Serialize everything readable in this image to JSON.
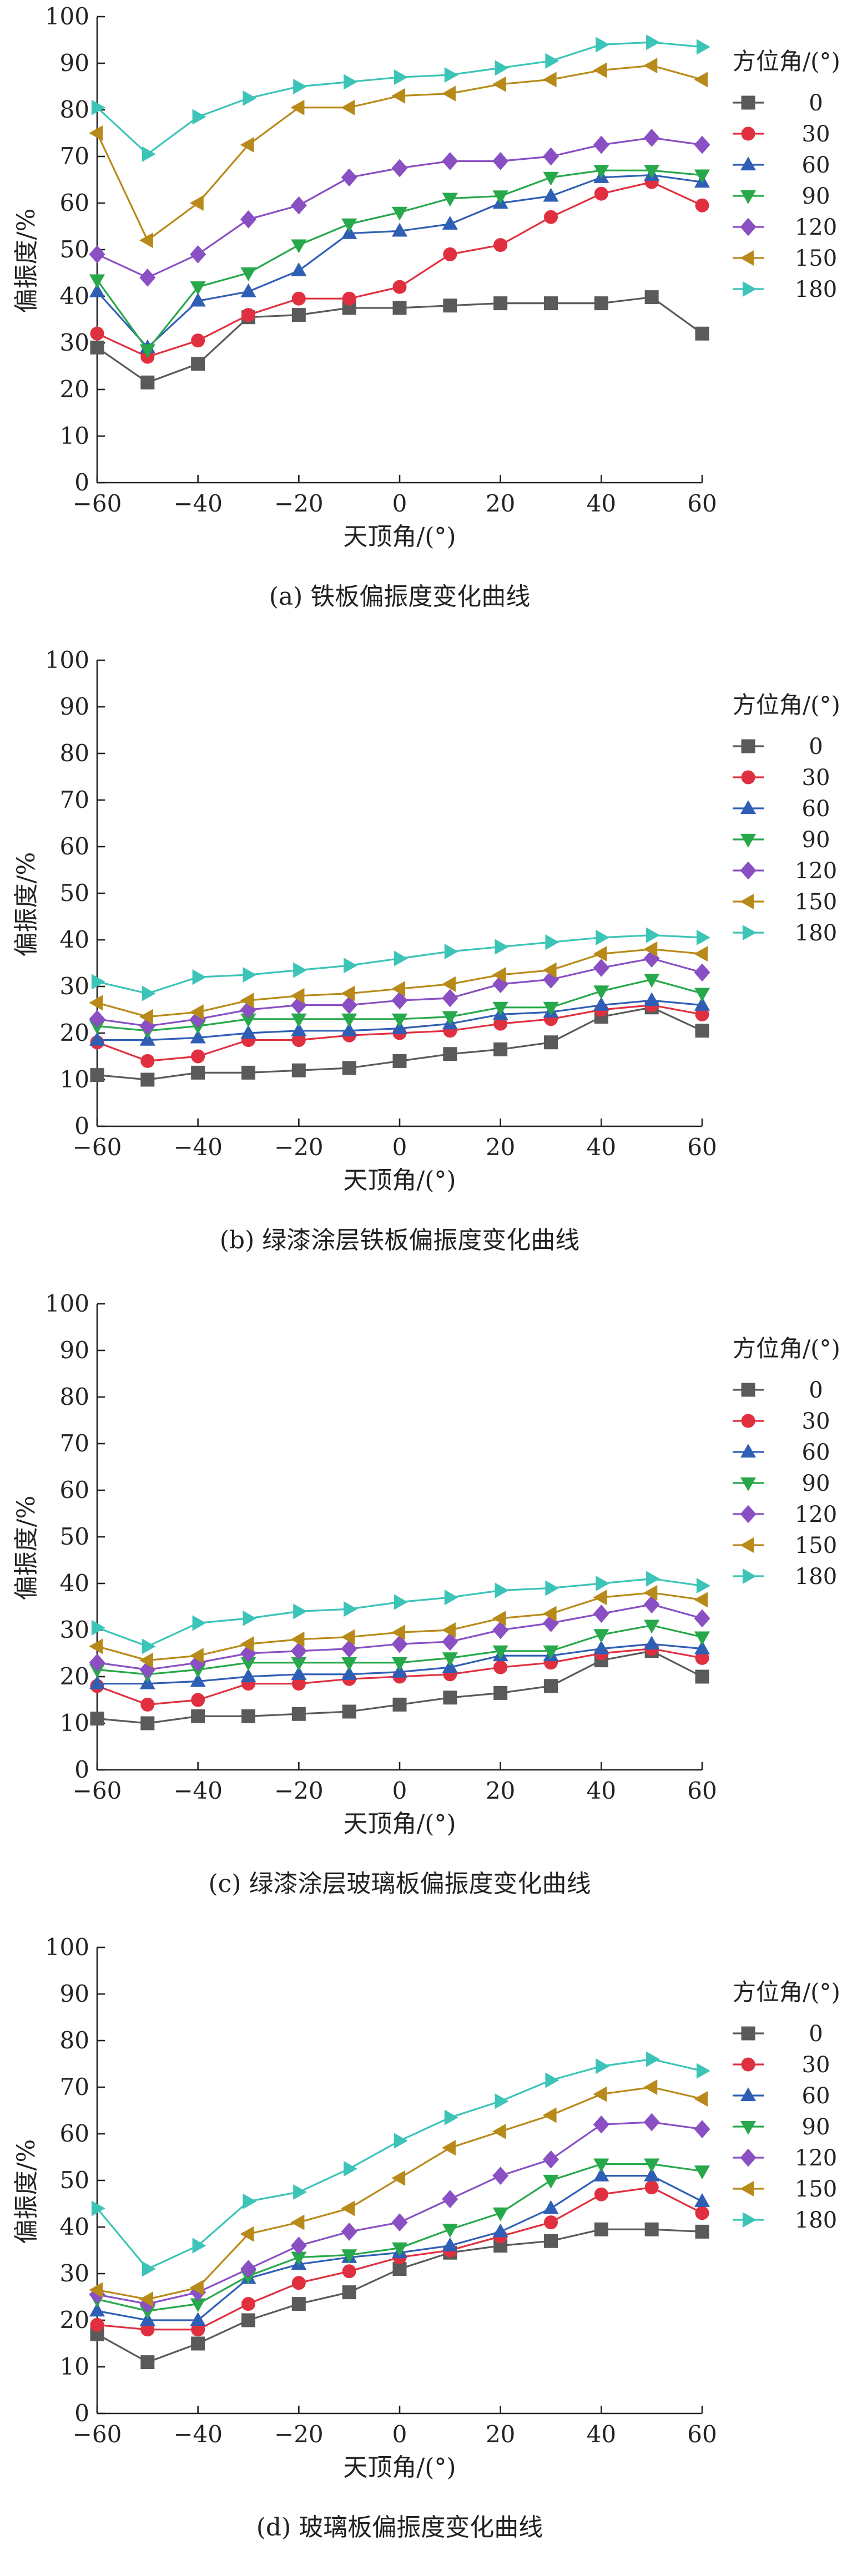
{
  "colors": {
    "0": "#5a5a5a",
    "30": "#e0303f",
    "60": "#2f5fb5",
    "90": "#27a84a",
    "120": "#8a4fc3",
    "150": "#b88a1a",
    "180": "#3cc4b8"
  },
  "chart_data": [
    {
      "type": "line",
      "caption": "(a) 铁板偏振度变化曲线",
      "xlabel": "天顶角/(°)",
      "ylabel": "偏振度/%",
      "xlim": [
        -60,
        60
      ],
      "ylim": [
        0,
        100
      ],
      "xticks": [
        -60,
        -40,
        -20,
        0,
        20,
        40,
        60
      ],
      "yticks": [
        0,
        10,
        20,
        30,
        40,
        50,
        60,
        70,
        80,
        90,
        100
      ],
      "legend_title": "方位角/(°)",
      "legend_position": "upper-right-inside",
      "x": [
        -60,
        -50,
        -40,
        -30,
        -20,
        -10,
        0,
        10,
        20,
        30,
        40,
        50,
        60
      ],
      "series": [
        {
          "name": "0",
          "marker": "square",
          "values": [
            29,
            21.5,
            25.5,
            35.5,
            36,
            37.5,
            37.5,
            38,
            38.5,
            38.5,
            38.5,
            39.8,
            32
          ]
        },
        {
          "name": "30",
          "marker": "circle",
          "values": [
            32,
            27,
            30.5,
            36,
            39.5,
            39.5,
            42,
            49,
            51,
            57,
            62,
            64.5,
            59.5
          ]
        },
        {
          "name": "60",
          "marker": "triangle-up",
          "values": [
            41,
            29,
            39,
            41,
            45.5,
            53.5,
            54,
            55.5,
            60,
            61.5,
            65.5,
            66,
            64.5
          ]
        },
        {
          "name": "90",
          "marker": "triangle-down",
          "values": [
            43.5,
            28.5,
            42,
            45,
            51,
            55.5,
            58,
            61,
            61.5,
            65.5,
            67,
            67,
            66
          ]
        },
        {
          "name": "120",
          "marker": "diamond",
          "values": [
            49,
            44,
            49,
            56.5,
            59.5,
            65.5,
            67.5,
            69,
            69,
            70,
            72.5,
            74,
            72.5
          ]
        },
        {
          "name": "150",
          "marker": "triangle-left",
          "values": [
            75,
            52,
            60,
            72.5,
            80.5,
            80.5,
            83,
            83.5,
            85.5,
            86.5,
            88.5,
            89.5,
            86.5
          ]
        },
        {
          "name": "180",
          "marker": "triangle-right",
          "values": [
            80.5,
            70.5,
            78.5,
            82.5,
            85,
            86,
            87,
            87.5,
            89,
            90.5,
            94,
            94.5,
            93.5
          ]
        }
      ]
    },
    {
      "type": "line",
      "caption": "(b) 绿漆涂层铁板偏振度变化曲线",
      "xlabel": "天顶角/(°)",
      "ylabel": "偏振度/%",
      "xlim": [
        -60,
        60
      ],
      "ylim": [
        0,
        100
      ],
      "xticks": [
        -60,
        -40,
        -20,
        0,
        20,
        40,
        60
      ],
      "yticks": [
        0,
        10,
        20,
        30,
        40,
        50,
        60,
        70,
        80,
        90,
        100
      ],
      "legend_title": "方位角/(°)",
      "legend_position": "right-outside",
      "x": [
        -60,
        -50,
        -40,
        -30,
        -20,
        -10,
        0,
        10,
        20,
        30,
        40,
        50,
        60
      ],
      "series": [
        {
          "name": "0",
          "marker": "square",
          "values": [
            11,
            10,
            11.5,
            11.5,
            12,
            12.5,
            14,
            15.5,
            16.5,
            18,
            23.5,
            25.5,
            20.5
          ]
        },
        {
          "name": "30",
          "marker": "circle",
          "values": [
            18,
            14,
            15,
            18.5,
            18.5,
            19.5,
            20,
            20.5,
            22,
            23,
            25,
            26,
            24
          ]
        },
        {
          "name": "60",
          "marker": "triangle-up",
          "values": [
            18.5,
            18.5,
            19,
            20,
            20.5,
            20.5,
            21,
            22,
            24,
            24.5,
            26,
            27,
            26
          ]
        },
        {
          "name": "90",
          "marker": "triangle-down",
          "values": [
            21.5,
            20.5,
            21.5,
            23,
            23,
            23,
            23,
            23.5,
            25.5,
            25.5,
            29,
            31.5,
            28.5
          ]
        },
        {
          "name": "120",
          "marker": "diamond",
          "values": [
            23,
            21.5,
            23,
            25,
            26,
            26,
            27,
            27.5,
            30.5,
            31.5,
            34,
            36,
            33
          ]
        },
        {
          "name": "150",
          "marker": "triangle-left",
          "values": [
            26.5,
            23.5,
            24.5,
            27,
            28,
            28.5,
            29.5,
            30.5,
            32.5,
            33.5,
            37,
            38,
            37
          ]
        },
        {
          "name": "180",
          "marker": "triangle-right",
          "values": [
            31,
            28.5,
            32,
            32.5,
            33.5,
            34.5,
            36,
            37.5,
            38.5,
            39.5,
            40.5,
            41,
            40.5
          ]
        }
      ]
    },
    {
      "type": "line",
      "caption": "(c) 绿漆涂层玻璃板偏振度变化曲线",
      "xlabel": "天顶角/(°)",
      "ylabel": "偏振度/%",
      "xlim": [
        -60,
        60
      ],
      "ylim": [
        0,
        100
      ],
      "xticks": [
        -60,
        -40,
        -20,
        0,
        20,
        40,
        60
      ],
      "yticks": [
        0,
        10,
        20,
        30,
        40,
        50,
        60,
        70,
        80,
        90,
        100
      ],
      "legend_title": "方位角/(°)",
      "legend_position": "right-outside",
      "x": [
        -60,
        -50,
        -40,
        -30,
        -20,
        -10,
        0,
        10,
        20,
        30,
        40,
        50,
        60
      ],
      "series": [
        {
          "name": "0",
          "marker": "square",
          "values": [
            11,
            10,
            11.5,
            11.5,
            12,
            12.5,
            14,
            15.5,
            16.5,
            18,
            23.5,
            25.5,
            20
          ]
        },
        {
          "name": "30",
          "marker": "circle",
          "values": [
            18,
            14,
            15,
            18.5,
            18.5,
            19.5,
            20,
            20.5,
            22,
            23,
            25,
            26,
            24
          ]
        },
        {
          "name": "60",
          "marker": "triangle-up",
          "values": [
            18.5,
            18.5,
            19,
            20,
            20.5,
            20.5,
            21,
            22,
            24.5,
            24.5,
            26,
            27,
            26
          ]
        },
        {
          "name": "90",
          "marker": "triangle-down",
          "values": [
            21.5,
            20.5,
            21.5,
            23,
            23,
            23,
            23,
            24,
            25.5,
            25.5,
            29,
            31,
            28.5
          ]
        },
        {
          "name": "120",
          "marker": "diamond",
          "values": [
            23,
            21.5,
            23,
            25,
            25.5,
            26,
            27,
            27.5,
            30,
            31.5,
            33.5,
            35.5,
            32.5
          ]
        },
        {
          "name": "150",
          "marker": "triangle-left",
          "values": [
            26.5,
            23.5,
            24.5,
            27,
            28,
            28.5,
            29.5,
            30,
            32.5,
            33.5,
            37,
            38,
            36.5
          ]
        },
        {
          "name": "180",
          "marker": "triangle-right",
          "values": [
            30.5,
            26.5,
            31.5,
            32.5,
            34,
            34.5,
            36,
            37,
            38.5,
            39,
            40,
            41,
            39.5
          ]
        }
      ]
    },
    {
      "type": "line",
      "caption": "(d) 玻璃板偏振度变化曲线",
      "xlabel": "天顶角/(°)",
      "ylabel": "偏振度/%",
      "xlim": [
        -60,
        60
      ],
      "ylim": [
        0,
        100
      ],
      "xticks": [
        -60,
        -40,
        -20,
        0,
        20,
        40,
        60
      ],
      "yticks": [
        0,
        10,
        20,
        30,
        40,
        50,
        60,
        70,
        80,
        90,
        100
      ],
      "legend_title": "方位角/(°)",
      "legend_position": "right-outside",
      "x": [
        -60,
        -50,
        -40,
        -30,
        -20,
        -10,
        0,
        10,
        20,
        30,
        40,
        50,
        60
      ],
      "series": [
        {
          "name": "0",
          "marker": "square",
          "values": [
            17,
            11,
            15,
            20,
            23.5,
            26,
            31,
            34.5,
            36,
            37,
            39.5,
            39.5,
            39
          ]
        },
        {
          "name": "30",
          "marker": "circle",
          "values": [
            19,
            18,
            18,
            23.5,
            28,
            30.5,
            33.5,
            35,
            38,
            41,
            47,
            48.5,
            43
          ]
        },
        {
          "name": "60",
          "marker": "triangle-up",
          "values": [
            22,
            20,
            20,
            29,
            32,
            33.5,
            34.5,
            36,
            39,
            44,
            51,
            51,
            45.5
          ]
        },
        {
          "name": "90",
          "marker": "triangle-down",
          "values": [
            24.5,
            22,
            23.5,
            29.5,
            33.5,
            34,
            35.5,
            39.5,
            43,
            50,
            53.5,
            53.5,
            52
          ]
        },
        {
          "name": "120",
          "marker": "diamond",
          "values": [
            25.5,
            23.5,
            26,
            31,
            36,
            39,
            41,
            46,
            51,
            54.5,
            62,
            62.5,
            61
          ]
        },
        {
          "name": "150",
          "marker": "triangle-left",
          "values": [
            26.5,
            24.5,
            27,
            38.5,
            41,
            44,
            50.5,
            57,
            60.5,
            64,
            68.5,
            70,
            67.5
          ]
        },
        {
          "name": "180",
          "marker": "triangle-right",
          "values": [
            44,
            31,
            36,
            45.5,
            47.5,
            52.5,
            58.5,
            63.5,
            67,
            71.5,
            74.5,
            76,
            73.5
          ]
        }
      ]
    }
  ]
}
